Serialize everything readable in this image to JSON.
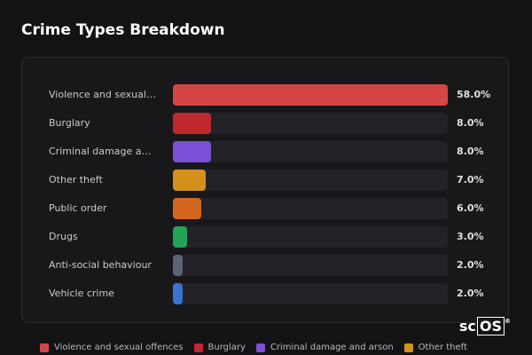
{
  "chart_data": {
    "type": "bar",
    "orientation": "horizontal",
    "title": "Crime Types Breakdown",
    "categories": [
      "Violence and sexual offences",
      "Burglary",
      "Criminal damage and arson",
      "Other theft",
      "Public order",
      "Drugs",
      "Anti-social behaviour",
      "Vehicle crime"
    ],
    "values": [
      58,
      8,
      8,
      7,
      6,
      3,
      2,
      2
    ],
    "value_labels": [
      "58.0%",
      "8.0%",
      "8.0%",
      "7.0%",
      "6.0%",
      "3.0%",
      "2.0%",
      "2.0%"
    ],
    "colors": [
      "#d64545",
      "#c0282d",
      "#7b4fd6",
      "#d4911a",
      "#d2661f",
      "#22a355",
      "#5a6475",
      "#3a73d0"
    ]
  },
  "watermark": {
    "prefix": "sc",
    "boxed": "OS",
    "mark": "®"
  }
}
